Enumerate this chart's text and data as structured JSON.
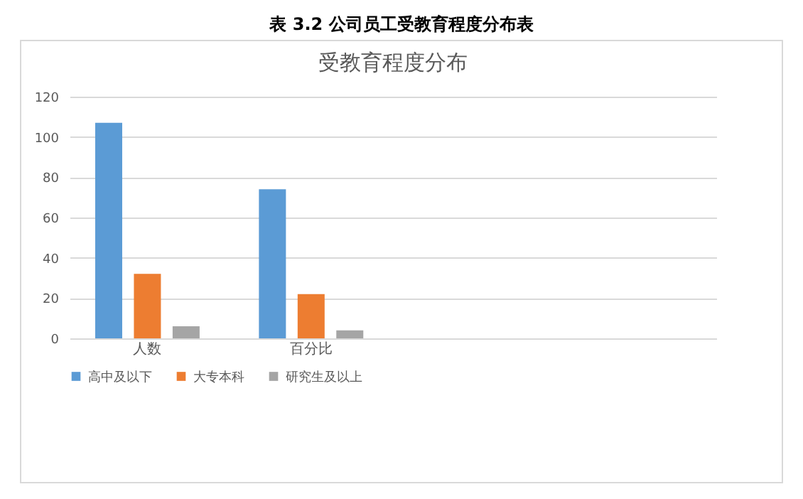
{
  "chart_data": {
    "type": "bar",
    "title": "表 3.2 公司员工受教育程度分布表",
    "subtitle": "受教育程度分布",
    "categories": [
      "人数",
      "百分比",
      null,
      null
    ],
    "series": [
      {
        "name": "高中及以下",
        "color": "#5b9bd5",
        "values": [
          107,
          74,
          null,
          null
        ]
      },
      {
        "name": "大专本科",
        "color": "#ed7d31",
        "values": [
          32,
          22,
          null,
          null
        ]
      },
      {
        "name": "研究生及以上",
        "color": "#a5a5a5",
        "values": [
          6,
          4,
          null,
          null
        ]
      }
    ],
    "ylim": [
      0,
      120
    ],
    "yticks": [
      0,
      20,
      40,
      60,
      80,
      100,
      120
    ],
    "grid": "y",
    "legend": "bottom"
  }
}
